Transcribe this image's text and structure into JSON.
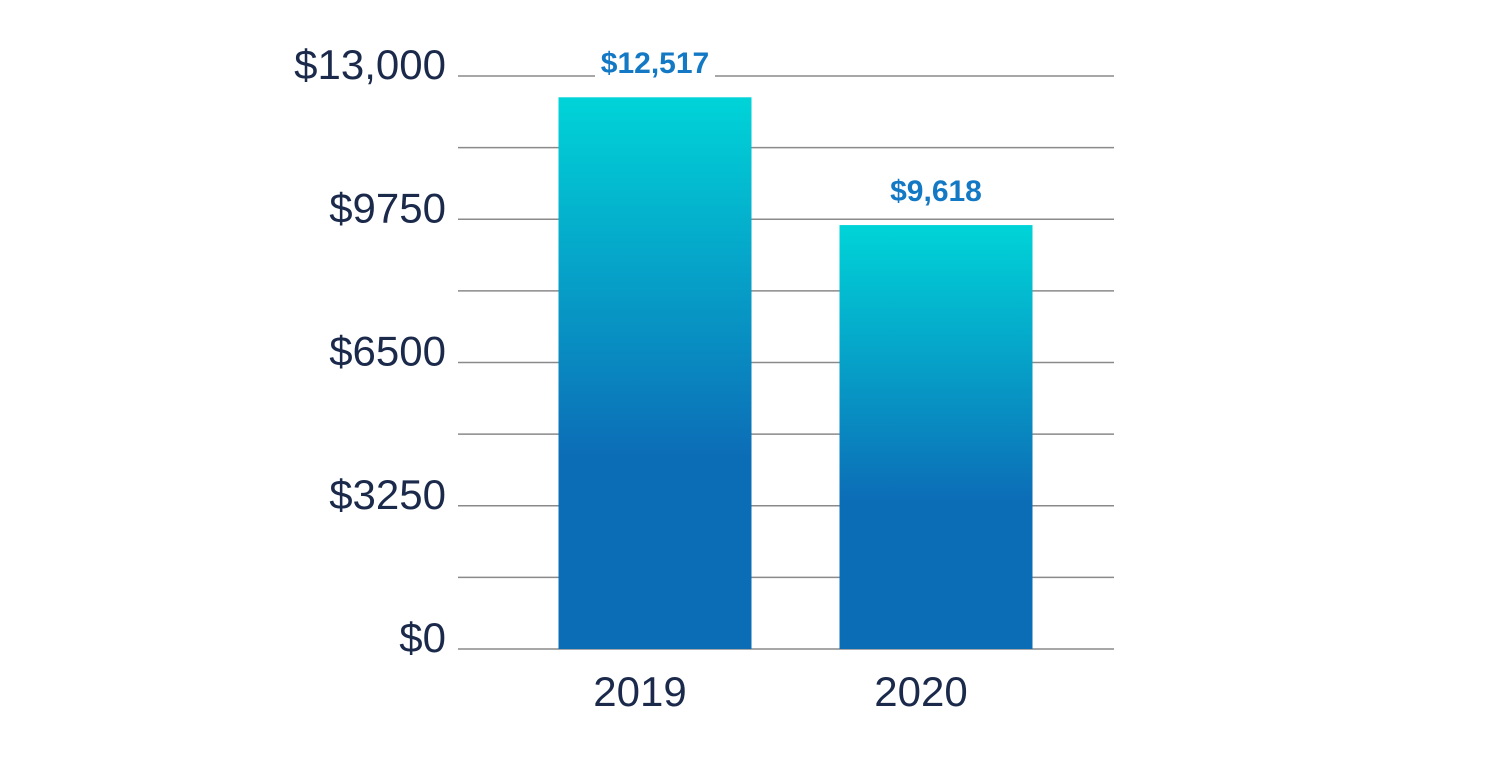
{
  "chart_data": {
    "type": "bar",
    "categories": [
      "2019",
      "2020"
    ],
    "values": [
      12517,
      9618
    ],
    "value_labels": [
      "$12,517",
      "$9,618"
    ],
    "colors": [
      "#00d4d8",
      "#0c6db7"
    ],
    "ylim": [
      0,
      13000
    ],
    "yticks": [
      {
        "value": 0,
        "label": "$0"
      },
      {
        "value": 3250,
        "label": "$3250"
      },
      {
        "value": 6500,
        "label": "$6500"
      },
      {
        "value": 9750,
        "label": "$9750"
      },
      {
        "value": 13000,
        "label": "$13,000"
      }
    ],
    "minor_yticks": [
      1625,
      4875,
      8125,
      11375
    ],
    "grid": true
  }
}
